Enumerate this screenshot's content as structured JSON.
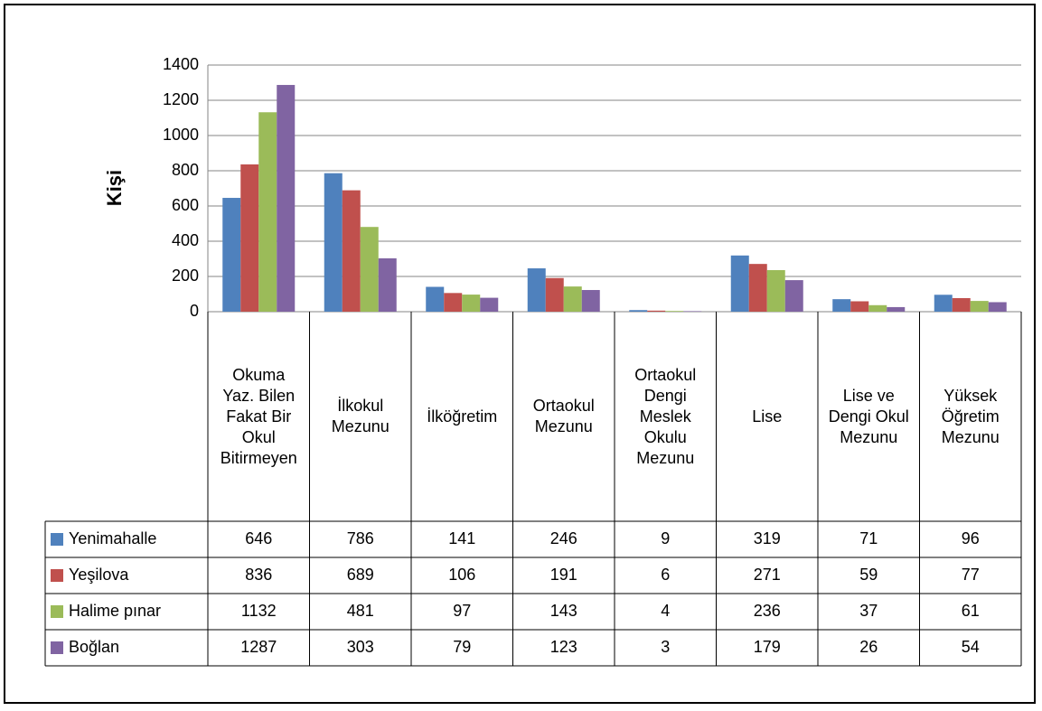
{
  "chart_data": {
    "type": "bar",
    "y_label": "Kişi",
    "categories": [
      "Okuma Yaz. Bilen Fakat Bir Okul Bitirmeyen",
      "İlkokul Mezunu",
      "İlköğretim",
      "Ortaokul Mezunu",
      "Ortaokul Dengi Meslek Okulu Mezunu",
      "Lise",
      "Lise ve Dengi Okul Mezunu",
      "Yüksek Öğretim Mezunu"
    ],
    "series": [
      {
        "name": "Yenimahalle",
        "color": "#4f81bd",
        "values": [
          646,
          786,
          141,
          246,
          9,
          319,
          71,
          96
        ]
      },
      {
        "name": "Yeşilova",
        "color": "#c0504d",
        "values": [
          836,
          689,
          106,
          191,
          6,
          271,
          59,
          77
        ]
      },
      {
        "name": "Halime pınar",
        "color": "#9bbb59",
        "values": [
          1132,
          481,
          97,
          143,
          4,
          236,
          37,
          61
        ]
      },
      {
        "name": "Boğlan",
        "color": "#8064a2",
        "values": [
          1287,
          303,
          79,
          123,
          3,
          179,
          26,
          54
        ]
      }
    ],
    "ylim": [
      0,
      1400
    ],
    "yticks": [
      0,
      200,
      400,
      600,
      800,
      1000,
      1200,
      1400
    ],
    "grid": true,
    "data_table": true
  }
}
